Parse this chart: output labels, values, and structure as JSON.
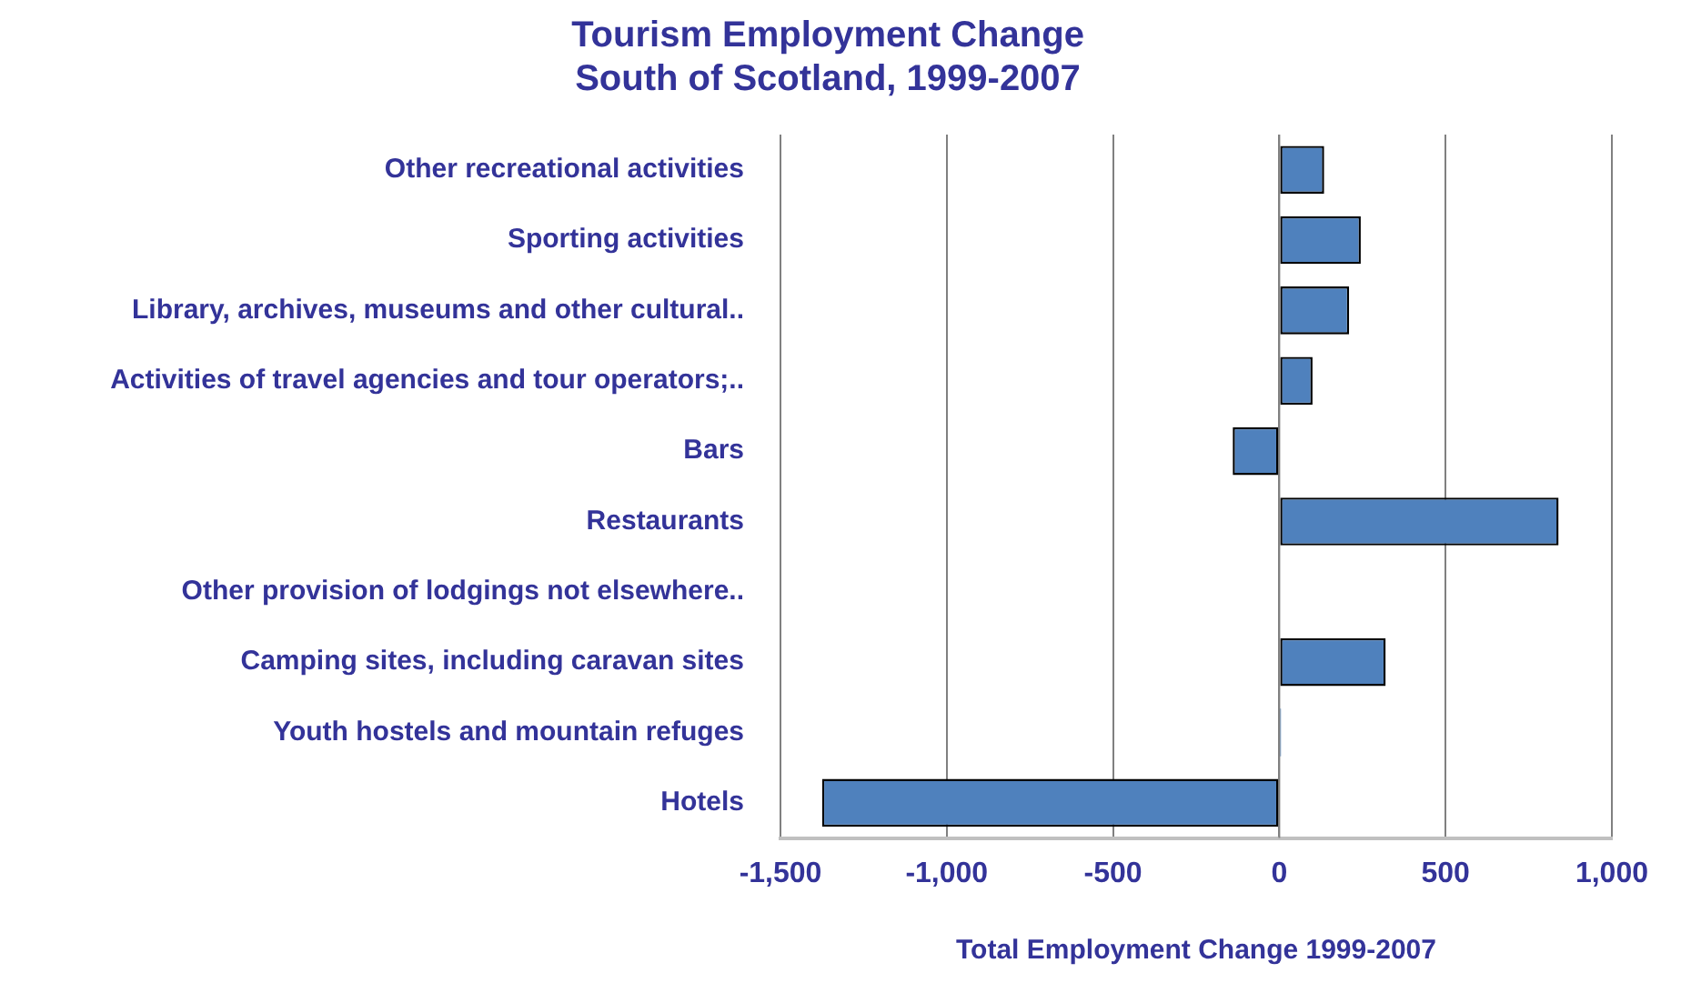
{
  "chart_data": {
    "type": "bar",
    "orientation": "horizontal",
    "title": "Tourism Employment Change\nSouth of Scotland, 1999-2007",
    "xlabel": "Total Employment Change 1999-2007",
    "categories": [
      "Other recreational activities",
      "Sporting activities",
      "Library, archives, museums and other cultural..",
      "Activities of travel agencies and tour operators;..",
      "Bars",
      "Restaurants",
      "Other provision of lodgings not elsewhere..",
      "Camping sites, including caravan sites",
      "Youth hostels and mountain refuges",
      "Hotels"
    ],
    "values": [
      135,
      245,
      210,
      100,
      -140,
      840,
      0,
      320,
      5,
      -1375
    ],
    "color": "#4f81bd",
    "xlim": [
      -1500,
      1000
    ],
    "xticks": [
      {
        "value": -1500,
        "label": "-1,500"
      },
      {
        "value": -1000,
        "label": "-1,000"
      },
      -500,
      0,
      500,
      {
        "value": 1000,
        "label": "1,000"
      }
    ],
    "grid": "x"
  }
}
